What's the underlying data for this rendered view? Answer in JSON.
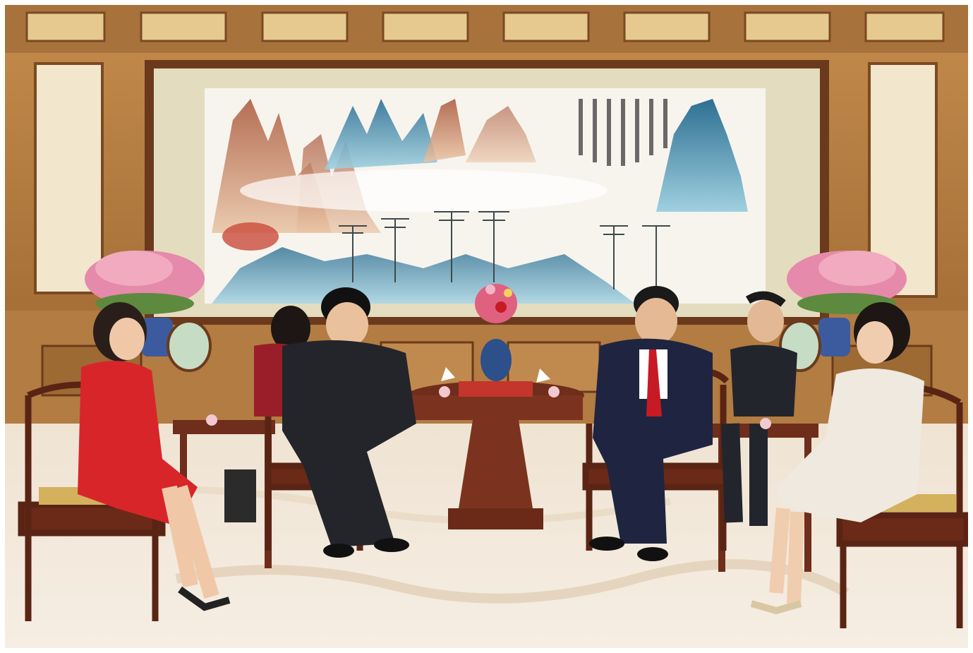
{
  "image": {
    "description_free": true,
    "colors": {
      "wood": "#b07a3f",
      "wood_dark": "#6b3a1c",
      "panel_cream": "#f1e3c2",
      "carpet": "#f1e6d8",
      "red_dress": "#d8252a",
      "suit_dark": "#24252a",
      "navy_suit": "#1f2540",
      "tie_red": "#c71a25",
      "ivory_dress": "#efe9e0",
      "mountain_blue": "#3f86a6",
      "mountain_rust": "#b8683f",
      "flower_pink": "#e58aaa"
    }
  }
}
